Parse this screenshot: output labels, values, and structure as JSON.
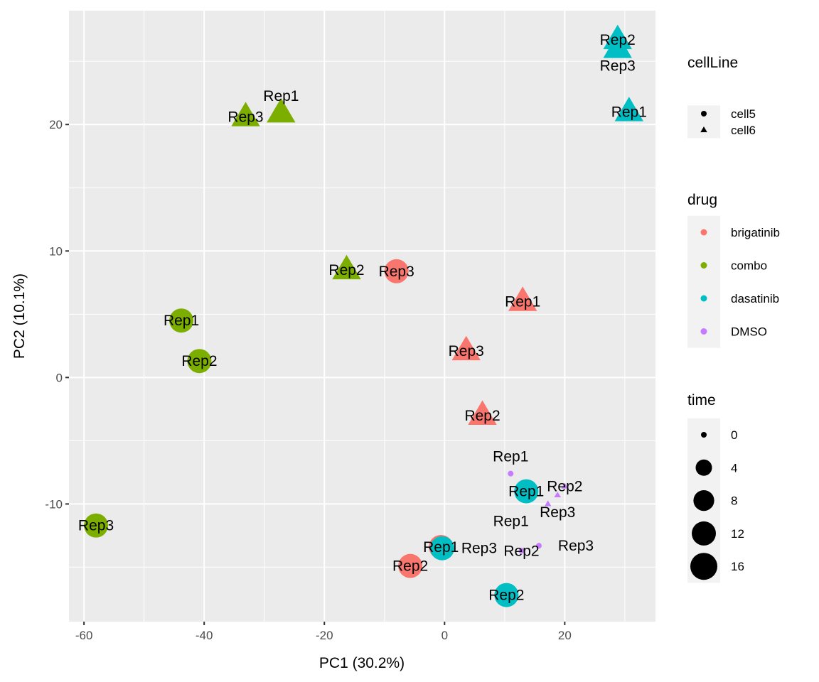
{
  "chart_data": {
    "type": "scatter",
    "xlabel": "PC1 (30.2%)",
    "ylabel": "PC2 (10.1%)",
    "xlim": [
      -62.5,
      35.1
    ],
    "ylim": [
      -19.3,
      29.0
    ],
    "x_ticks": [
      -60,
      -40,
      -20,
      0,
      20
    ],
    "y_ticks": [
      -10,
      0,
      10,
      20
    ],
    "grid": true,
    "legend_placement": "right",
    "colors": {
      "brigatinib": "#F8766D",
      "combo": "#7CAE00",
      "dasatinib": "#00BFC4",
      "DMSO": "#C77CFF"
    },
    "panel_background": "#EBEBEB",
    "legends": [
      {
        "title": "cellLine",
        "items": [
          {
            "label": "cell5",
            "shape": "circle"
          },
          {
            "label": "cell6",
            "shape": "triangle"
          }
        ]
      },
      {
        "title": "drug",
        "items": [
          {
            "label": "brigatinib"
          },
          {
            "label": "combo"
          },
          {
            "label": "dasatinib"
          },
          {
            "label": "DMSO"
          }
        ]
      },
      {
        "title": "time",
        "items": [
          {
            "label": "0",
            "value": 0
          },
          {
            "label": "4",
            "value": 4
          },
          {
            "label": "8",
            "value": 8
          },
          {
            "label": "12",
            "value": 12
          },
          {
            "label": "16",
            "value": 16
          }
        ]
      }
    ],
    "points": [
      {
        "x": -33.1,
        "y": 20.6,
        "drug": "combo",
        "cellLine": "cell6",
        "time": 12,
        "label": "Rep3"
      },
      {
        "x": -27.2,
        "y": 20.9,
        "drug": "combo",
        "cellLine": "cell6",
        "time": 12,
        "label": "Rep1"
      },
      {
        "x": -16.3,
        "y": 8.5,
        "drug": "combo",
        "cellLine": "cell6",
        "time": 12,
        "label": "Rep2"
      },
      {
        "x": -43.8,
        "y": 4.5,
        "drug": "combo",
        "cellLine": "cell5",
        "time": 12,
        "label": "Rep1"
      },
      {
        "x": -40.8,
        "y": 1.3,
        "drug": "combo",
        "cellLine": "cell5",
        "time": 12,
        "label": "Rep2"
      },
      {
        "x": -58.0,
        "y": -11.7,
        "drug": "combo",
        "cellLine": "cell5",
        "time": 12,
        "label": "Rep3"
      },
      {
        "x": -8.0,
        "y": 8.4,
        "drug": "brigatinib",
        "cellLine": "cell5",
        "time": 12,
        "label": "Rep3"
      },
      {
        "x": 13.0,
        "y": 6.0,
        "drug": "brigatinib",
        "cellLine": "cell6",
        "time": 12,
        "label": "Rep1"
      },
      {
        "x": 3.6,
        "y": 2.1,
        "drug": "brigatinib",
        "cellLine": "cell6",
        "time": 12,
        "label": "Rep3"
      },
      {
        "x": 6.3,
        "y": -3.0,
        "drug": "brigatinib",
        "cellLine": "cell6",
        "time": 12,
        "label": "Rep2"
      },
      {
        "x": -0.6,
        "y": -13.4,
        "drug": "brigatinib",
        "cellLine": "cell5",
        "time": 12,
        "label": "Rep1"
      },
      {
        "x": -5.7,
        "y": -14.9,
        "drug": "brigatinib",
        "cellLine": "cell5",
        "time": 12,
        "label": "Rep2"
      },
      {
        "x": 28.8,
        "y": 26.7,
        "drug": "dasatinib",
        "cellLine": "cell6",
        "time": 12,
        "label": "Rep2"
      },
      {
        "x": 28.8,
        "y": 26.0,
        "drug": "dasatinib",
        "cellLine": "cell6",
        "time": 12,
        "label": "Rep3"
      },
      {
        "x": 30.7,
        "y": 21.0,
        "drug": "dasatinib",
        "cellLine": "cell6",
        "time": 12,
        "label": "Rep1"
      },
      {
        "x": 13.6,
        "y": -9.0,
        "drug": "dasatinib",
        "cellLine": "cell5",
        "time": 12,
        "label": "Rep1"
      },
      {
        "x": -0.4,
        "y": -13.5,
        "drug": "dasatinib",
        "cellLine": "cell5",
        "time": 12,
        "label": "Rep3"
      },
      {
        "x": 10.3,
        "y": -17.2,
        "drug": "dasatinib",
        "cellLine": "cell5",
        "time": 12,
        "label": "Rep2"
      },
      {
        "x": 11.0,
        "y": -7.6,
        "drug": "DMSO",
        "cellLine": "cell5",
        "time": 0,
        "label": "Rep1"
      },
      {
        "x": 20.0,
        "y": -8.6,
        "drug": "DMSO",
        "cellLine": "cell6",
        "time": 0,
        "label": "Rep2"
      },
      {
        "x": 18.8,
        "y": -9.3,
        "drug": "DMSO",
        "cellLine": "cell6",
        "time": 0,
        "label": "Rep3"
      },
      {
        "x": 17.2,
        "y": -10.0,
        "drug": "DMSO",
        "cellLine": "cell6",
        "time": 0,
        "label": "Rep1"
      },
      {
        "x": 12.8,
        "y": -13.7,
        "drug": "DMSO",
        "cellLine": "cell5",
        "time": 0,
        "label": "Rep2"
      },
      {
        "x": 15.7,
        "y": -13.3,
        "drug": "DMSO",
        "cellLine": "cell5",
        "time": 0,
        "label": "Rep3"
      }
    ]
  }
}
